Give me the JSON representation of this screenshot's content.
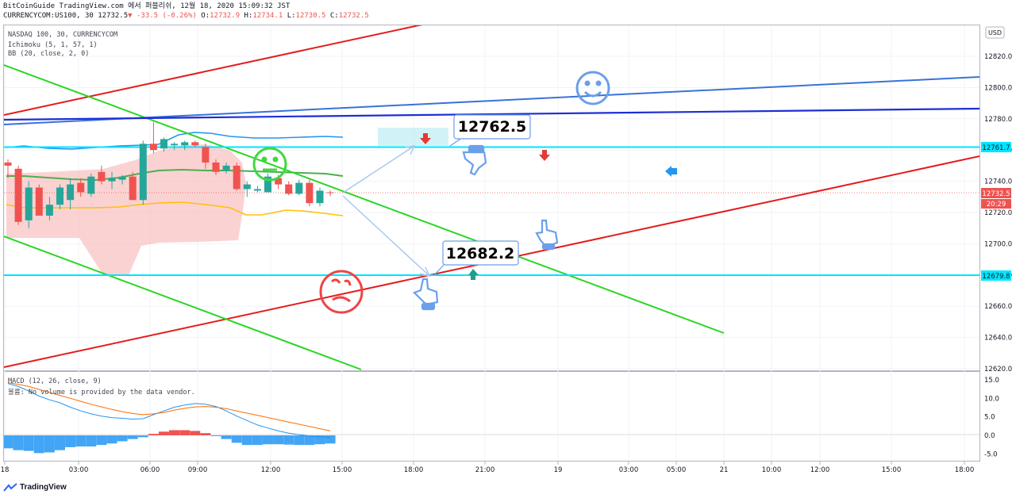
{
  "header": {
    "line1": "BitCoinGuide TradingView.com 에서 퍼블리쉬, 12월 18, 2020 15:09:32 JST",
    "symbol": "CURRENCYCOM:US100, 30",
    "price": "12732.5",
    "change": "▼ -33.5 (-0.26%)",
    "o_label": "O:",
    "o_val": "12732.9",
    "h_label": "H:",
    "h_val": "12734.1",
    "l_label": "L:",
    "l_val": "12730.5",
    "c_label": "C:",
    "c_val": "12732.5"
  },
  "indicators": {
    "title": "NASDAQ 100, 30, CURRENCYCOM",
    "ichimoku": "Ichimoku (5, 1, 57, 1)",
    "bb": "BB (20, close, 2, 0)",
    "macd": "MACD (12, 26, close, 9)",
    "volume_note": "볼륨: No volume is provided by the data vendor."
  },
  "currency_button": "USD",
  "callouts": {
    "upper": "12762.5",
    "lower": "12682.2"
  },
  "price_tags": {
    "upper_level": "12761.7",
    "last_price": "12732.5",
    "countdown": "20:29",
    "lower_level": "12679.8"
  },
  "footer": {
    "brand": "TradingView"
  },
  "colors": {
    "up": "#26a69a",
    "down": "#ef5350",
    "cyan_level": "#00e5ff",
    "green_line": "#2bd625",
    "red_line": "#e51b1b",
    "blue_line": "#1c2fd4"
  },
  "chart_data": [
    {
      "type": "candlestick",
      "title": "NASDAQ 100, 30, CURRENCYCOM",
      "ylim": [
        12620,
        12830
      ],
      "y_ticks": [
        12620,
        12640,
        12660,
        12680,
        12700,
        12720,
        12740,
        12760,
        12780,
        12800,
        12820
      ],
      "x_ticks": [
        "18",
        "03:00",
        "06:00",
        "09:00",
        "12:00",
        "15:00",
        "18:00",
        "21:00",
        "19",
        "03:00",
        "05:00",
        "21",
        "10:00",
        "12:00",
        "15:00",
        "18:00"
      ],
      "candles_ohlc": [
        [
          12752,
          12754,
          12742,
          12750
        ],
        [
          12748,
          12750,
          12712,
          12714
        ],
        [
          12715,
          12740,
          12710,
          12736
        ],
        [
          12736,
          12738,
          12718,
          12718
        ],
        [
          12718,
          12730,
          12715,
          12725
        ],
        [
          12725,
          12738,
          12722,
          12736
        ],
        [
          12728,
          12742,
          12722,
          12738
        ],
        [
          12739,
          12742,
          12730,
          12733
        ],
        [
          12732,
          12745,
          12730,
          12743
        ],
        [
          12746,
          12750,
          12738,
          12740
        ],
        [
          12740,
          12746,
          12735,
          12742
        ],
        [
          12741,
          12744,
          12738,
          12743
        ],
        [
          12743,
          12746,
          12728,
          12728
        ],
        [
          12728,
          12766,
          12725,
          12764
        ],
        [
          12764,
          12778,
          12758,
          12760
        ],
        [
          12761,
          12768,
          12759,
          12767
        ],
        [
          12763,
          12765,
          12760,
          12764
        ],
        [
          12763,
          12766,
          12760,
          12765
        ],
        [
          12765,
          12766,
          12762,
          12763
        ],
        [
          12762,
          12764,
          12748,
          12752
        ],
        [
          12752,
          12754,
          12744,
          12746
        ],
        [
          12747,
          12752,
          12745,
          12750
        ],
        [
          12750,
          12752,
          12734,
          12735
        ],
        [
          12735,
          12740,
          12730,
          12738
        ],
        [
          12734,
          12737,
          12733,
          12735
        ],
        [
          12733,
          12745,
          12733,
          12743
        ],
        [
          12742,
          12744,
          12735,
          12738
        ],
        [
          12738,
          12740,
          12731,
          12732
        ],
        [
          12732,
          12741,
          12731,
          12739
        ],
        [
          12739,
          12741,
          12724,
          12726
        ],
        [
          12726,
          12736,
          12724,
          12734
        ],
        [
          12732.9,
          12734.1,
          12730.5,
          12732.5
        ]
      ],
      "horizontal_levels": [
        12761.7,
        12679.8
      ],
      "last_price": 12732.5
    },
    {
      "type": "bar",
      "title": "MACD (12, 26, close, 9)",
      "ylim": [
        -6.5,
        16.5
      ],
      "y_ticks": [
        15.0,
        10.0,
        5.0,
        0.0,
        -5.0
      ],
      "histogram": [
        -3.5,
        -4.0,
        -4.2,
        -4.8,
        -4.6,
        -4.0,
        -3.2,
        -3.0,
        -3.0,
        -2.6,
        -2.2,
        -1.6,
        -1.0,
        -0.5,
        0.4,
        1.0,
        1.4,
        1.4,
        1.2,
        0.6,
        -0.2,
        -1.0,
        -2.0,
        -2.6,
        -2.6,
        -2.4,
        -2.4,
        -2.5,
        -2.6,
        -2.6,
        -2.4,
        -2.2
      ],
      "macd_line": [
        14.0,
        13.2,
        12.0,
        10.6,
        9.6,
        8.8,
        7.6,
        6.6,
        5.8,
        5.2,
        4.8,
        4.6,
        4.4,
        4.5,
        5.6,
        6.6,
        7.6,
        8.2,
        8.6,
        8.4,
        7.8,
        6.6,
        5.2,
        4.0,
        2.8,
        2.0,
        1.2,
        0.6,
        0.2,
        -0.2,
        -0.4,
        -0.6
      ],
      "signal_line": [
        14.2,
        13.8,
        13.2,
        12.4,
        11.6,
        10.8,
        10.0,
        9.2,
        8.4,
        7.7,
        7.0,
        6.4,
        5.9,
        5.6,
        5.8,
        6.2,
        6.8,
        7.3,
        7.7,
        7.8,
        7.6,
        7.2,
        6.6,
        6.0,
        5.4,
        4.8,
        4.2,
        3.6,
        3.0,
        2.4,
        1.8,
        1.2
      ]
    }
  ]
}
